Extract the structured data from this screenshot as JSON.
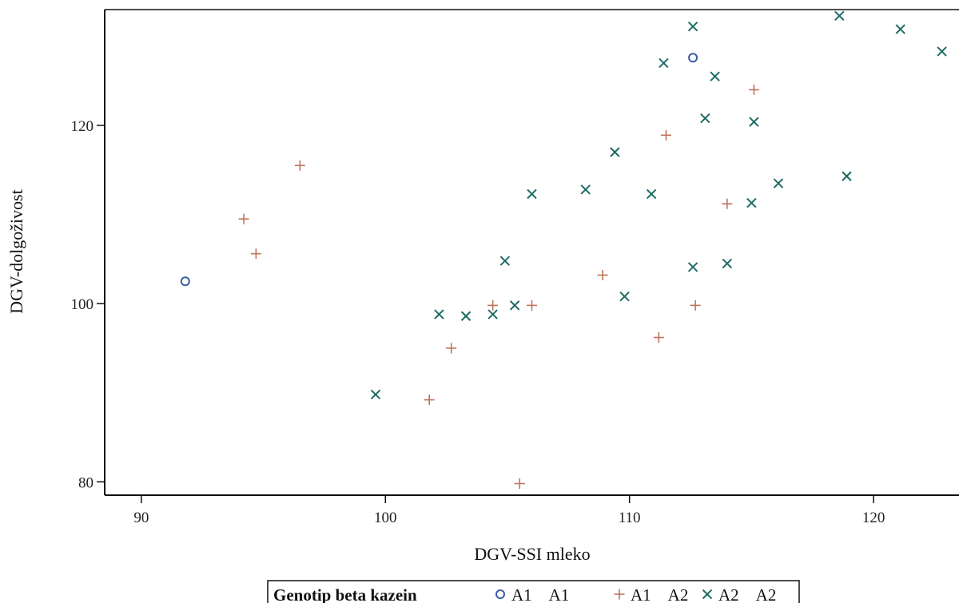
{
  "chart_data": {
    "type": "scatter",
    "title": "",
    "xlabel": "DGV-SSI mleko",
    "ylabel": "DGV-dolgoživost",
    "xlim": [
      88.5,
      123.5
    ],
    "ylim": [
      78.5,
      133
    ],
    "xticks": [
      90,
      100,
      110,
      120
    ],
    "yticks": [
      80,
      100,
      120
    ],
    "grid": false,
    "legend": {
      "title": "Genotip beta kazein",
      "placement": "bottom"
    },
    "series": [
      {
        "name": "A1 A1",
        "marker": "circle",
        "color": "#3b5ba8",
        "points": [
          {
            "x": 91.8,
            "y": 102.5
          },
          {
            "x": 112.6,
            "y": 127.6
          }
        ]
      },
      {
        "name": "A1 A2",
        "marker": "plus",
        "color": "#c0735a",
        "points": [
          {
            "x": 94.2,
            "y": 109.5
          },
          {
            "x": 94.7,
            "y": 105.6
          },
          {
            "x": 96.5,
            "y": 115.5
          },
          {
            "x": 101.8,
            "y": 89.2
          },
          {
            "x": 102.7,
            "y": 95.0
          },
          {
            "x": 104.4,
            "y": 99.8
          },
          {
            "x": 106.0,
            "y": 99.8
          },
          {
            "x": 108.9,
            "y": 103.2
          },
          {
            "x": 111.2,
            "y": 96.2
          },
          {
            "x": 111.5,
            "y": 118.9
          },
          {
            "x": 112.7,
            "y": 99.8
          },
          {
            "x": 114.0,
            "y": 111.2
          },
          {
            "x": 115.1,
            "y": 124.0
          },
          {
            "x": 105.5,
            "y": 79.8
          }
        ]
      },
      {
        "name": "A2 A2",
        "marker": "x",
        "color": "#1e6b66",
        "points": [
          {
            "x": 99.6,
            "y": 89.8
          },
          {
            "x": 102.2,
            "y": 98.8
          },
          {
            "x": 103.3,
            "y": 98.6
          },
          {
            "x": 104.4,
            "y": 98.8
          },
          {
            "x": 104.9,
            "y": 104.8
          },
          {
            "x": 105.3,
            "y": 99.8
          },
          {
            "x": 106.0,
            "y": 112.3
          },
          {
            "x": 108.2,
            "y": 112.8
          },
          {
            "x": 109.4,
            "y": 117.0
          },
          {
            "x": 109.8,
            "y": 100.8
          },
          {
            "x": 110.9,
            "y": 112.3
          },
          {
            "x": 111.4,
            "y": 127.0
          },
          {
            "x": 112.6,
            "y": 131.1
          },
          {
            "x": 112.6,
            "y": 104.1
          },
          {
            "x": 113.1,
            "y": 120.8
          },
          {
            "x": 113.5,
            "y": 125.5
          },
          {
            "x": 114.0,
            "y": 104.5
          },
          {
            "x": 115.0,
            "y": 111.3
          },
          {
            "x": 115.1,
            "y": 120.4
          },
          {
            "x": 116.1,
            "y": 113.5
          },
          {
            "x": 118.6,
            "y": 132.3
          },
          {
            "x": 118.9,
            "y": 114.3
          },
          {
            "x": 121.1,
            "y": 130.8
          },
          {
            "x": 122.8,
            "y": 128.3
          }
        ]
      }
    ]
  }
}
